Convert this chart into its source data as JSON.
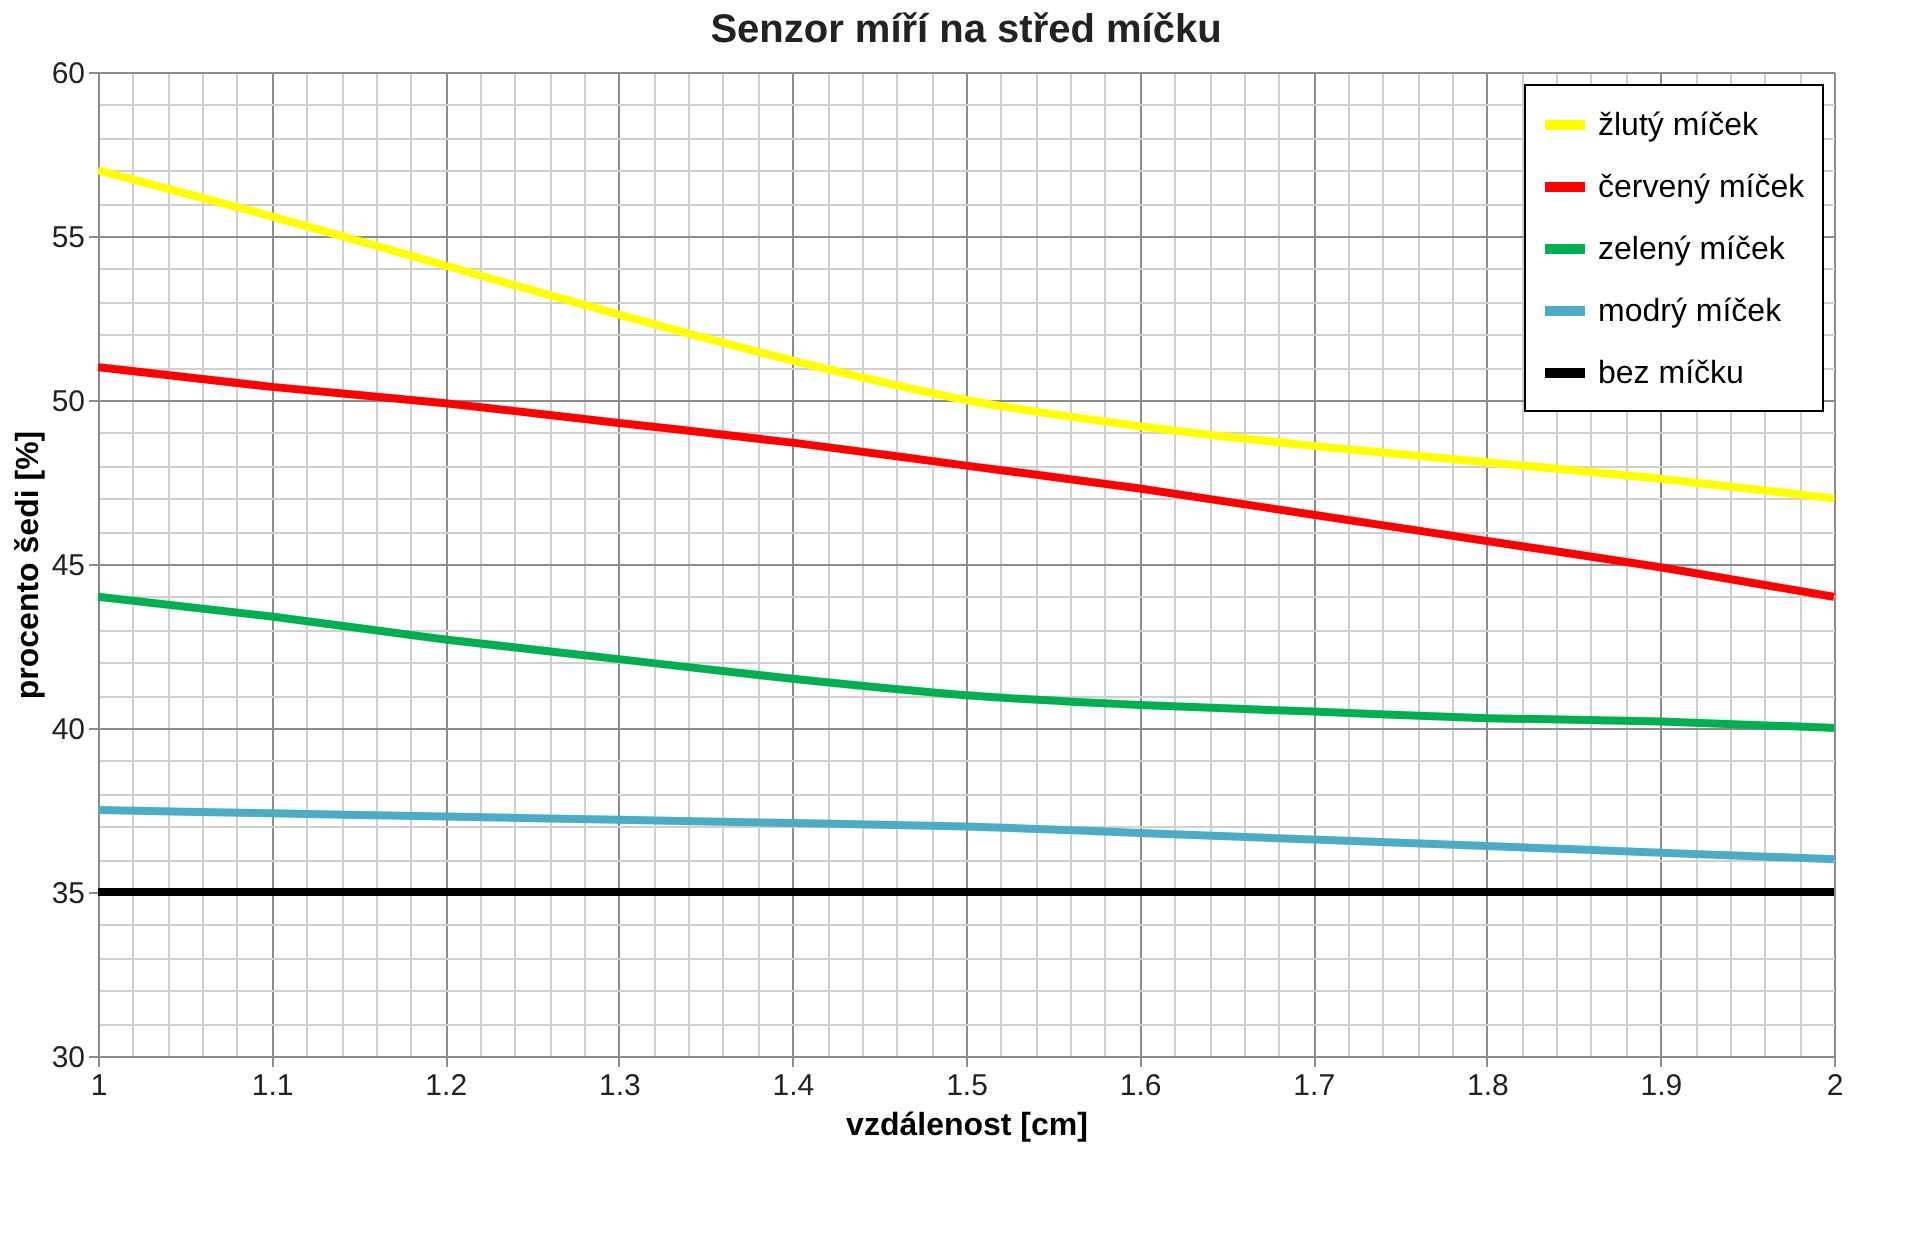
{
  "chart_data": {
    "type": "line",
    "title": "Senzor míří na střed míčku",
    "xlabel": "vzdálenost [cm]",
    "ylabel": "procento šedi [%]",
    "x": [
      1,
      1.1,
      1.2,
      1.3,
      1.4,
      1.5,
      1.6,
      1.7,
      1.8,
      1.9,
      2
    ],
    "series": [
      {
        "name": "žlutý míček",
        "color": "#ffff00",
        "values": [
          57,
          55.6,
          54.1,
          52.6,
          51.2,
          50.0,
          49.2,
          48.6,
          48.1,
          47.6,
          47
        ]
      },
      {
        "name": "červený míček",
        "color": "#ff0000",
        "values": [
          51,
          50.4,
          49.9,
          49.3,
          48.7,
          48.0,
          47.3,
          46.5,
          45.7,
          44.9,
          44
        ]
      },
      {
        "name": "zelený míček",
        "color": "#00b050",
        "values": [
          44,
          43.4,
          42.7,
          42.1,
          41.5,
          41.0,
          40.7,
          40.5,
          40.3,
          40.2,
          40
        ]
      },
      {
        "name": "modrý míček",
        "color": "#4bacc6",
        "values": [
          37.5,
          37.4,
          37.3,
          37.2,
          37.1,
          37.0,
          36.8,
          36.6,
          36.4,
          36.2,
          36
        ]
      },
      {
        "name": "bez míčku",
        "color": "#000000",
        "values": [
          35,
          35,
          35,
          35,
          35,
          35,
          35,
          35,
          35,
          35,
          35
        ]
      }
    ],
    "xlim": [
      1,
      2
    ],
    "ylim": [
      30,
      60
    ],
    "xticks": [
      1,
      {
        "value": 1.02,
        "label": null
      },
      {
        "value": 1.04,
        "label": null
      },
      {
        "value": 1.06,
        "label": null
      },
      {
        "value": 1.08,
        "label": null
      },
      1.1,
      {
        "value": 1.12,
        "label": null
      },
      {
        "value": 1.14,
        "label": null
      },
      {
        "value": 1.16,
        "label": null
      },
      {
        "value": 1.18,
        "label": null
      },
      1.2,
      {
        "value": 1.22,
        "label": null
      },
      {
        "value": 1.24,
        "label": null
      },
      {
        "value": 1.26,
        "label": null
      },
      {
        "value": 1.28,
        "label": null
      },
      1.3,
      {
        "value": 1.32,
        "label": null
      },
      {
        "value": 1.34,
        "label": null
      },
      {
        "value": 1.36,
        "label": null
      },
      {
        "value": 1.38,
        "label": null
      },
      1.4,
      {
        "value": 1.42,
        "label": null
      },
      {
        "value": 1.44,
        "label": null
      },
      {
        "value": 1.46,
        "label": null
      },
      {
        "value": 1.48,
        "label": null
      },
      1.5,
      {
        "value": 1.52,
        "label": null
      },
      {
        "value": 1.54,
        "label": null
      },
      {
        "value": 1.56,
        "label": null
      },
      {
        "value": 1.58,
        "label": null
      },
      1.6,
      {
        "value": 1.62,
        "label": null
      },
      {
        "value": 1.64,
        "label": null
      },
      {
        "value": 1.66,
        "label": null
      },
      {
        "value": 1.68,
        "label": null
      },
      1.7,
      {
        "value": 1.72,
        "label": null
      },
      {
        "value": 1.74,
        "label": null
      },
      {
        "value": 1.76,
        "label": null
      },
      {
        "value": 1.78,
        "label": null
      },
      1.8,
      {
        "value": 1.82,
        "label": null
      },
      {
        "value": 1.84,
        "label": null
      },
      {
        "value": 1.86,
        "label": null
      },
      {
        "value": 1.88,
        "label": null
      },
      1.9,
      {
        "value": 1.92,
        "label": null
      },
      {
        "value": 1.94,
        "label": null
      },
      {
        "value": 1.96,
        "label": null
      },
      {
        "value": 1.98,
        "label": null
      },
      2
    ],
    "yticks": [
      30,
      {
        "value": 31,
        "label": null
      },
      {
        "value": 32,
        "label": null
      },
      {
        "value": 33,
        "label": null
      },
      {
        "value": 34,
        "label": null
      },
      35,
      {
        "value": 36,
        "label": null
      },
      {
        "value": 37,
        "label": null
      },
      {
        "value": 38,
        "label": null
      },
      {
        "value": 39,
        "label": null
      },
      40,
      {
        "value": 41,
        "label": null
      },
      {
        "value": 42,
        "label": null
      },
      {
        "value": 43,
        "label": null
      },
      {
        "value": 44,
        "label": null
      },
      45,
      {
        "value": 46,
        "label": null
      },
      {
        "value": 47,
        "label": null
      },
      {
        "value": 48,
        "label": null
      },
      {
        "value": 49,
        "label": null
      },
      50,
      {
        "value": 51,
        "label": null
      },
      {
        "value": 52,
        "label": null
      },
      {
        "value": 53,
        "label": null
      },
      {
        "value": 54,
        "label": null
      },
      55,
      {
        "value": 56,
        "label": null
      },
      {
        "value": 57,
        "label": null
      },
      {
        "value": 58,
        "label": null
      },
      {
        "value": 59,
        "label": null
      },
      60
    ],
    "grid": true,
    "legend": "top right",
    "line_style": "solid"
  }
}
